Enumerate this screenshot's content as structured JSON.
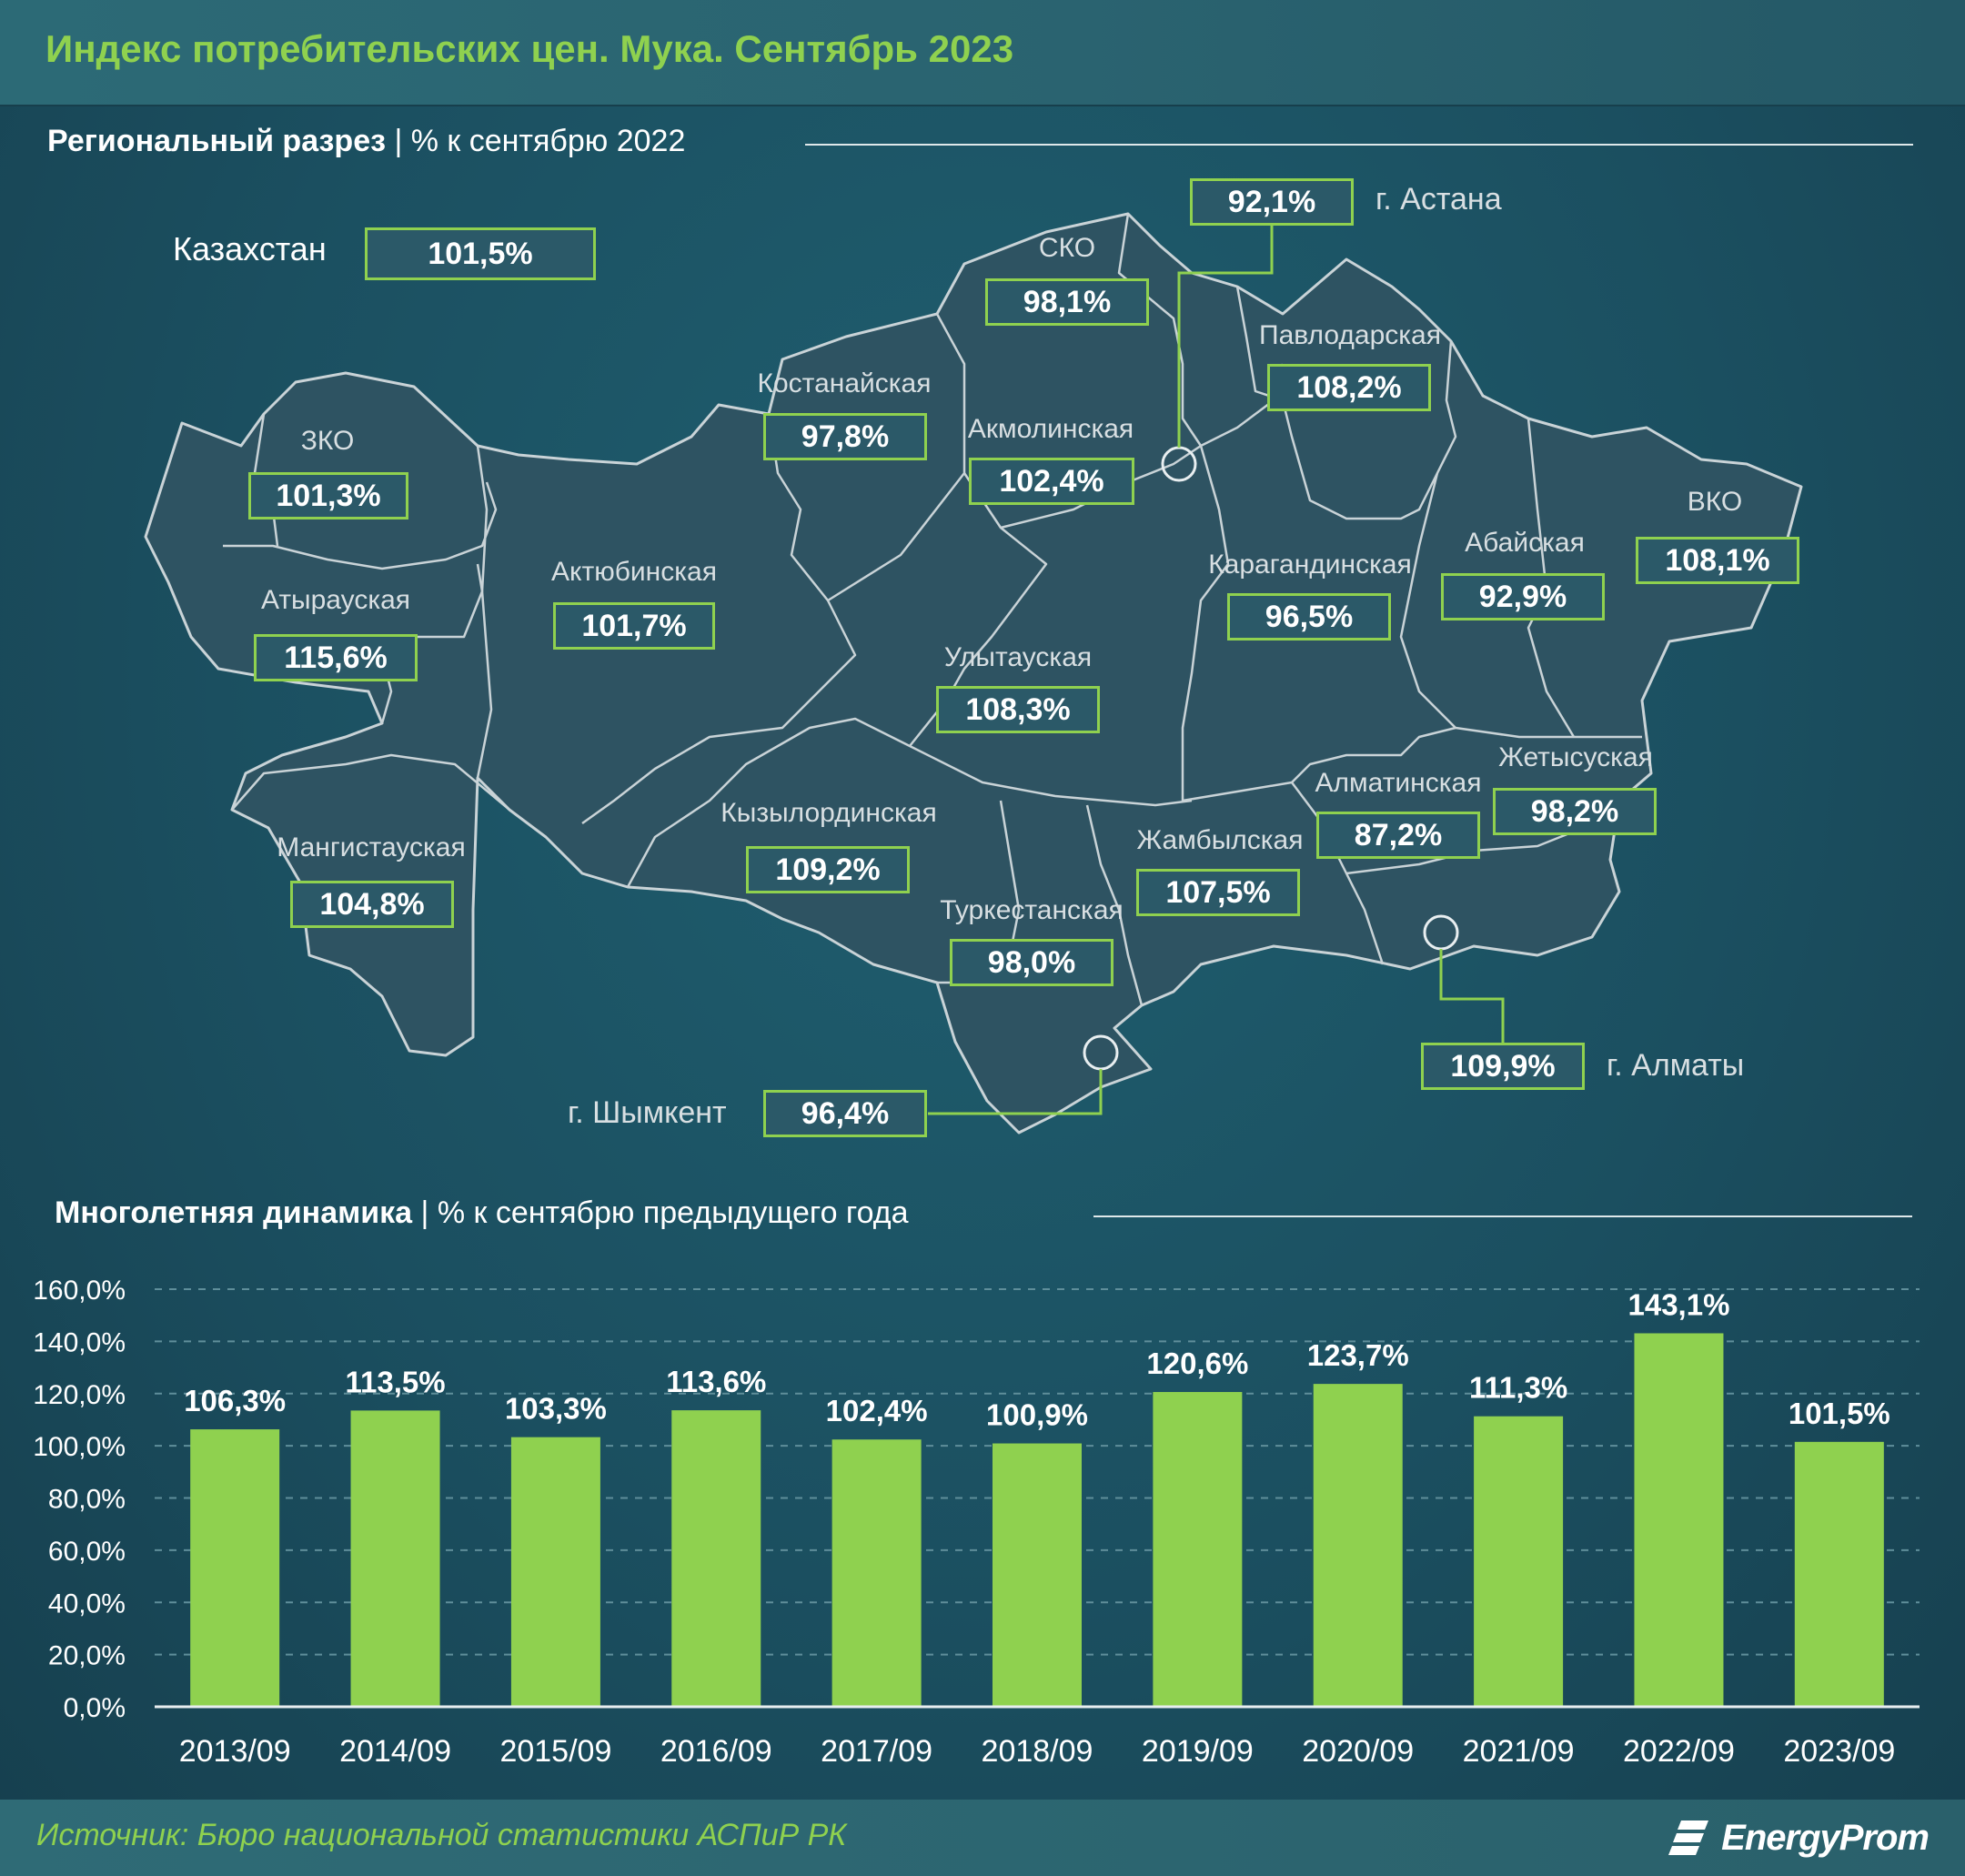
{
  "title": "Индекс потребительских цен. Мука. Сентябрь 2023",
  "map_section": {
    "title_bold": "Региональный разрез",
    "title_rest": " | % к сентябрю 2022"
  },
  "kazakhstan": {
    "label": "Казахстан",
    "value": "101,5%"
  },
  "regions": [
    {
      "id": "zko",
      "name": "ЗКО",
      "value": "101,3%"
    },
    {
      "id": "atyrau",
      "name": "Атырауская",
      "value": "115,6%"
    },
    {
      "id": "mangistau",
      "name": "Мангистауская",
      "value": "104,8%"
    },
    {
      "id": "aktobe",
      "name": "Актюбинская",
      "value": "101,7%"
    },
    {
      "id": "kostanay",
      "name": "Костанайская",
      "value": "97,8%"
    },
    {
      "id": "sko",
      "name": "СКО",
      "value": "98,1%"
    },
    {
      "id": "akmola",
      "name": "Акмолинская",
      "value": "102,4%"
    },
    {
      "id": "pavlodar",
      "name": "Павлодарская",
      "value": "108,2%"
    },
    {
      "id": "karaganda",
      "name": "Карагандинская",
      "value": "96,5%"
    },
    {
      "id": "abai",
      "name": "Абайская",
      "value": "92,9%"
    },
    {
      "id": "vko",
      "name": "ВКО",
      "value": "108,1%"
    },
    {
      "id": "ulytau",
      "name": "Улытауская",
      "value": "108,3%"
    },
    {
      "id": "kyzylorda",
      "name": "Кызылординская",
      "value": "109,2%"
    },
    {
      "id": "zhambyl",
      "name": "Жамбылская",
      "value": "107,5%"
    },
    {
      "id": "almaty-region",
      "name": "Алматинская",
      "value": "87,2%"
    },
    {
      "id": "zhetysu",
      "name": "Жетысуская",
      "value": "98,2%"
    },
    {
      "id": "turkestan",
      "name": "Туркестанская",
      "value": "98,0%"
    }
  ],
  "cities": [
    {
      "id": "astana",
      "name": "г. Астана",
      "value": "92,1%"
    },
    {
      "id": "almaty",
      "name": "г. Алматы",
      "value": "109,9%"
    },
    {
      "id": "shymkent",
      "name": "г. Шымкент",
      "value": "96,4%"
    }
  ],
  "chart_section": {
    "title_bold": "Многолетняя динамика",
    "title_rest": " | % к сентябрю предыдущего года"
  },
  "chart_data": {
    "type": "bar",
    "categories": [
      "2013/09",
      "2014/09",
      "2015/09",
      "2016/09",
      "2017/09",
      "2018/09",
      "2019/09",
      "2020/09",
      "2021/09",
      "2022/09",
      "2023/09"
    ],
    "values": [
      106.3,
      113.5,
      103.3,
      113.6,
      102.4,
      100.9,
      120.6,
      123.7,
      111.3,
      143.1,
      101.5
    ],
    "data_labels": [
      "106,3%",
      "113,5%",
      "103,3%",
      "113,6%",
      "102,4%",
      "100,9%",
      "120,6%",
      "123,7%",
      "111,3%",
      "143,1%",
      "101,5%"
    ],
    "y_ticks": [
      "0,0%",
      "20,0%",
      "40,0%",
      "60,0%",
      "80,0%",
      "100,0%",
      "120,0%",
      "140,0%",
      "160,0%"
    ],
    "ylim": [
      0,
      160
    ],
    "grid": true,
    "bar_color": "#8fd14f"
  },
  "footer": {
    "source": "Источник: Бюро национальной статистики АСПиР РК",
    "logo": "EnergyProm"
  }
}
